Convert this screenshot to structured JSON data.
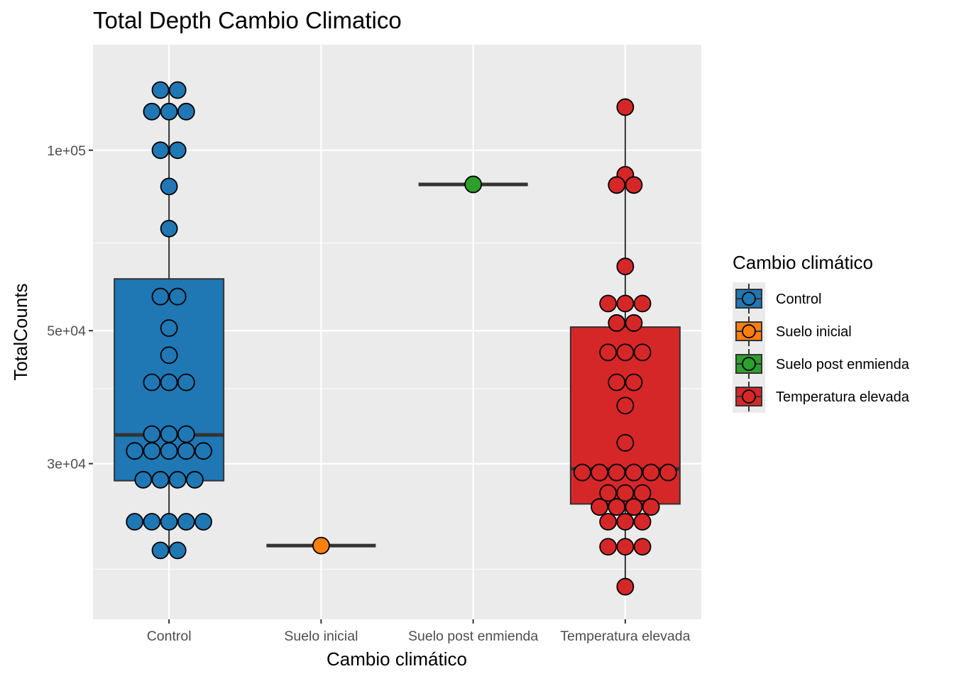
{
  "chart_data": {
    "type": "boxplot",
    "title": "Total Depth Cambio Climatico",
    "xlabel": "Cambio climático",
    "ylabel": "TotalCounts",
    "y_scale": "log10",
    "ylim": [
      16500,
      150000
    ],
    "y_ticks": [
      {
        "value": 30000,
        "label": "3e+04"
      },
      {
        "value": 50000,
        "label": "5e+04"
      },
      {
        "value": 100000,
        "label": "1e+05"
      }
    ],
    "y_minor_ticks": [
      20000,
      40000,
      70000
    ],
    "grid": true,
    "legend": {
      "title": "Cambio climático",
      "position": "right",
      "entries": [
        {
          "label": "Control",
          "color": "#1f77b4"
        },
        {
          "label": "Suelo inicial",
          "color": "#ff7f0e"
        },
        {
          "label": "Suelo post enmienda",
          "color": "#2ca02c"
        },
        {
          "label": "Temperatura elevada",
          "color": "#d62728"
        }
      ]
    },
    "categories": [
      "Control",
      "Suelo inicial",
      "Suelo post enmienda",
      "Temperatura elevada"
    ],
    "groups": [
      {
        "name": "Control",
        "color": "#1f77b4",
        "box": {
          "min": 21500,
          "q1": 28100,
          "median": 33500,
          "q3": 61000,
          "max": 126000
        },
        "points": [
          126000,
          126000,
          116000,
          116000,
          116000,
          100000,
          100000,
          87000,
          74000,
          57000,
          57000,
          50500,
          45500,
          41000,
          41000,
          41000,
          33600,
          33600,
          33600,
          31500,
          31500,
          31500,
          31500,
          31500,
          28200,
          28200,
          28200,
          28200,
          24000,
          24000,
          24000,
          24000,
          24000,
          21500,
          21500
        ]
      },
      {
        "name": "Suelo inicial",
        "color": "#ff7f0e",
        "box": {
          "min": 21900,
          "q1": 21900,
          "median": 21900,
          "q3": 21900,
          "max": 21900
        },
        "points": [
          21900
        ]
      },
      {
        "name": "Suelo post enmienda",
        "color": "#2ca02c",
        "box": {
          "min": 87700,
          "q1": 87700,
          "median": 87700,
          "q3": 87700,
          "max": 87700
        },
        "points": [
          87700
        ]
      },
      {
        "name": "Temperatura elevada",
        "color": "#d62728",
        "box": {
          "min": 18700,
          "q1": 25700,
          "median": 29400,
          "q3": 50700,
          "max": 118000
        },
        "points": [
          118000,
          91000,
          87500,
          87500,
          64000,
          55500,
          55500,
          55500,
          51500,
          51500,
          46000,
          46000,
          46000,
          41000,
          41000,
          37500,
          32500,
          29000,
          29000,
          29000,
          29000,
          29000,
          29000,
          26800,
          26800,
          26800,
          25400,
          25400,
          25400,
          25400,
          24000,
          24000,
          24000,
          21800,
          21800,
          21800,
          18700
        ]
      }
    ]
  }
}
